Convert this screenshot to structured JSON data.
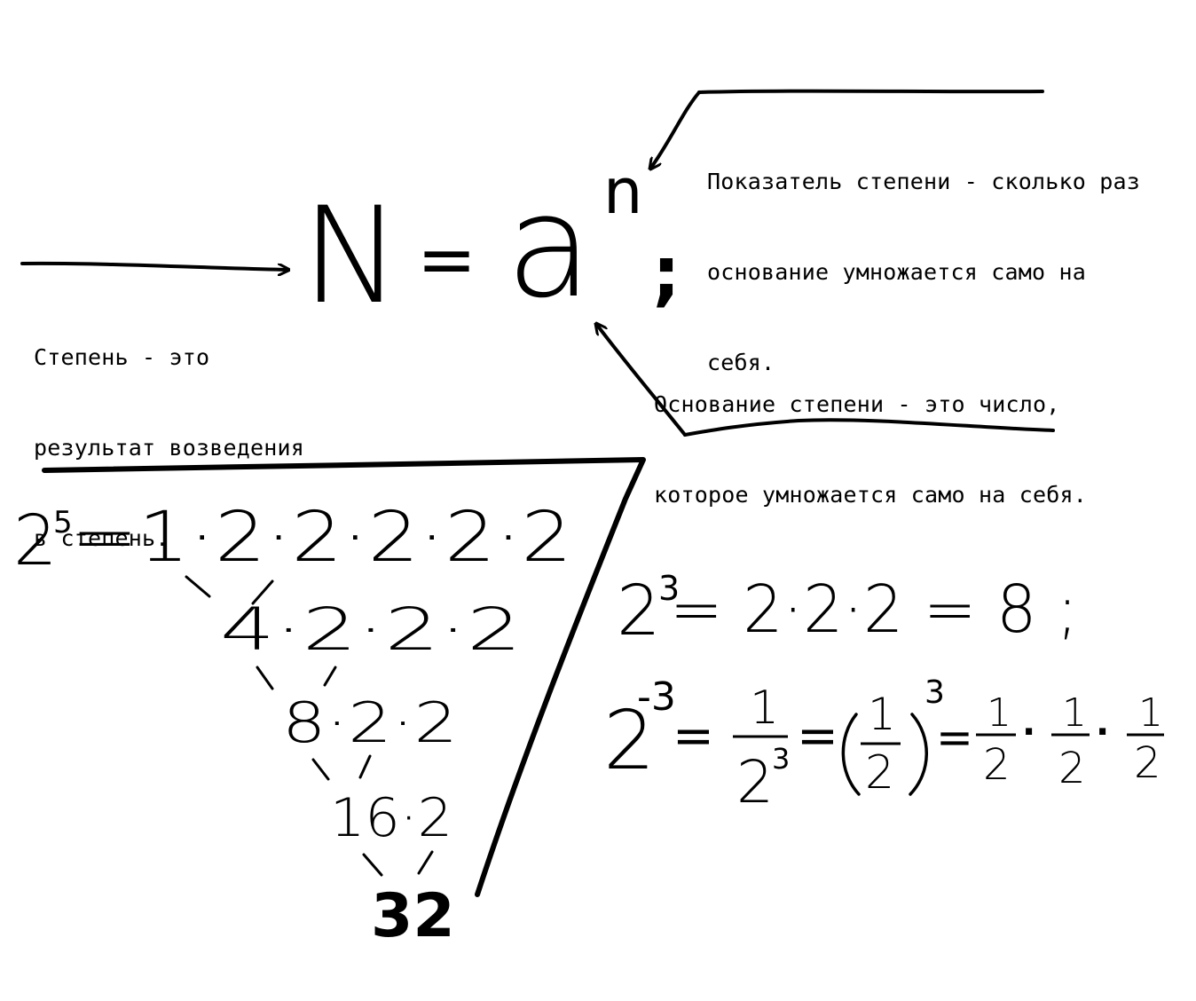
{
  "notes": {
    "power": [
      "Степень - это",
      "результат возведения",
      "в степень."
    ],
    "exponent": [
      "Показатель степени - сколько раз",
      "основание умножается само на",
      "себя."
    ],
    "base": [
      "Основание степени - это число,",
      "которое умножается само на себя."
    ]
  },
  "formula": {
    "lhs": "N",
    "eq": "=",
    "base": "a",
    "exponent": "n",
    "end": ";"
  },
  "tree": {
    "base": "2",
    "power": "5",
    "line1": "=1·2·2·2·2·2",
    "line2": "4·2·2·2",
    "line3": "8·2·2",
    "line4": "16·2",
    "result": "32"
  },
  "example_positive": {
    "base": "2",
    "power": "3",
    "rest": "= 2·2·2 = 8 ;"
  },
  "example_negative": {
    "base": "2",
    "power": "-3",
    "eq": "=",
    "frac_num": "1",
    "frac_den": "2",
    "frac_den_power": "3",
    "paren_num": "1",
    "paren_den": "2",
    "paren_power": "3",
    "half_num": "1",
    "half_den": "2",
    "dot": "·"
  },
  "style": {
    "ink": "#000000",
    "paper": "#ffffff"
  }
}
